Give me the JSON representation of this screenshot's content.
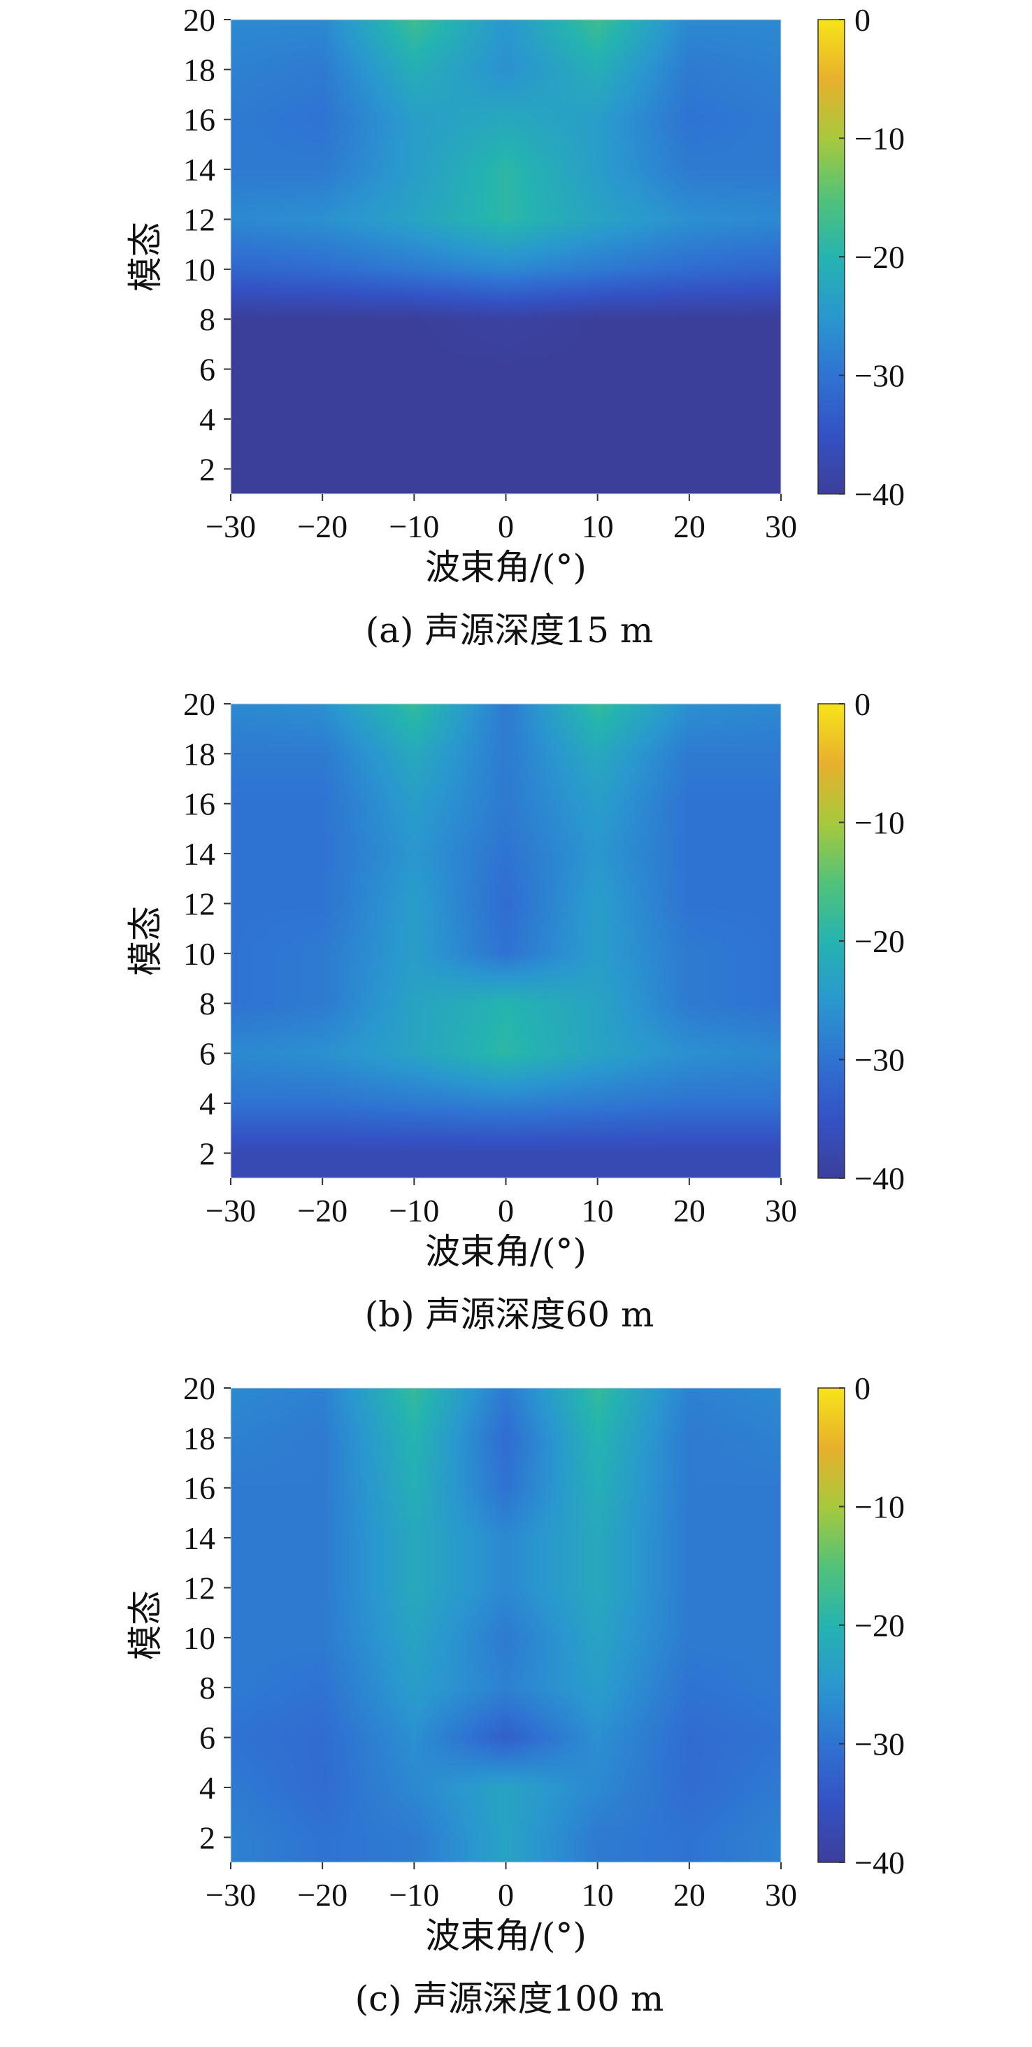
{
  "figure": {
    "colorscale": {
      "stops": [
        "#3b3f9a",
        "#3452c4",
        "#2f73d2",
        "#2a98cf",
        "#25b4b0",
        "#53c278",
        "#a8c93c",
        "#e8b02c",
        "#f7e41a"
      ],
      "min": -40,
      "max": 0,
      "ticks": [
        "0",
        "−10",
        "−20",
        "−30",
        "−40"
      ],
      "tick_values": [
        0,
        -10,
        -20,
        -30,
        -40
      ]
    },
    "xlabel": "波束角/(°)",
    "ylabel": "模态",
    "xticks": [
      "−30",
      "−20",
      "−10",
      "0",
      "10",
      "20",
      "30"
    ],
    "xtick_values": [
      -30,
      -20,
      -10,
      0,
      10,
      20,
      30
    ],
    "yticks": [
      "20",
      "18",
      "16",
      "14",
      "12",
      "10",
      "8",
      "6",
      "4",
      "2"
    ],
    "ytick_values": [
      20,
      18,
      16,
      14,
      12,
      10,
      8,
      6,
      4,
      2
    ]
  },
  "chart_data": [
    {
      "type": "heatmap",
      "caption": "(a) 声源深度15 m",
      "xlabel": "波束角/(°)",
      "ylabel": "模态",
      "xlim": [
        -30,
        30
      ],
      "ylim": [
        1,
        20
      ],
      "clim": [
        -40,
        0
      ],
      "x": [
        -30,
        -20,
        -10,
        0,
        10,
        20,
        30
      ],
      "y": [
        2,
        4,
        6,
        8,
        10,
        12,
        14,
        16,
        18,
        20
      ],
      "z": [
        [
          -40,
          -40,
          -40,
          -40,
          -40,
          -40,
          -40
        ],
        [
          -40,
          -40,
          -40,
          -40,
          -40,
          -40,
          -40
        ],
        [
          -40,
          -40,
          -40,
          -40,
          -40,
          -40,
          -40
        ],
        [
          -40,
          -40,
          -40,
          -39,
          -40,
          -40,
          -40
        ],
        [
          -32,
          -31,
          -29,
          -27,
          -29,
          -31,
          -32
        ],
        [
          -27,
          -26,
          -23,
          -19,
          -23,
          -26,
          -27
        ],
        [
          -29,
          -29,
          -24,
          -19,
          -24,
          -29,
          -29
        ],
        [
          -29,
          -30,
          -24,
          -22,
          -24,
          -30,
          -29
        ],
        [
          -28,
          -29,
          -21,
          -26,
          -21,
          -29,
          -28
        ],
        [
          -27,
          -27,
          -17,
          -25,
          -17,
          -27,
          -27
        ]
      ]
    },
    {
      "type": "heatmap",
      "caption": "(b) 声源深度60 m",
      "xlabel": "波束角/(°)",
      "ylabel": "模态",
      "xlim": [
        -30,
        30
      ],
      "ylim": [
        1,
        20
      ],
      "clim": [
        -40,
        0
      ],
      "x": [
        -30,
        -20,
        -10,
        0,
        10,
        20,
        30
      ],
      "y": [
        2,
        4,
        6,
        8,
        10,
        12,
        14,
        16,
        18,
        20
      ],
      "z": [
        [
          -37,
          -37,
          -37,
          -37,
          -37,
          -37,
          -37
        ],
        [
          -30,
          -30,
          -29,
          -28,
          -29,
          -30,
          -30
        ],
        [
          -27,
          -26,
          -23,
          -19,
          -23,
          -26,
          -27
        ],
        [
          -30,
          -29,
          -23,
          -20,
          -23,
          -29,
          -30
        ],
        [
          -30,
          -29,
          -24,
          -30,
          -24,
          -29,
          -30
        ],
        [
          -30,
          -30,
          -24,
          -31,
          -24,
          -30,
          -30
        ],
        [
          -30,
          -30,
          -25,
          -30,
          -25,
          -30,
          -30
        ],
        [
          -30,
          -30,
          -24,
          -29,
          -24,
          -30,
          -30
        ],
        [
          -29,
          -29,
          -22,
          -29,
          -22,
          -29,
          -29
        ],
        [
          -27,
          -26,
          -18,
          -29,
          -18,
          -26,
          -27
        ]
      ]
    },
    {
      "type": "heatmap",
      "caption": "(c) 声源深度100 m",
      "xlabel": "波束角/(°)",
      "ylabel": "模态",
      "xlim": [
        -30,
        30
      ],
      "ylim": [
        1,
        20
      ],
      "clim": [
        -40,
        0
      ],
      "x": [
        -30,
        -20,
        -10,
        0,
        10,
        20,
        30
      ],
      "y": [
        2,
        4,
        6,
        8,
        10,
        12,
        14,
        16,
        18,
        20
      ],
      "z": [
        [
          -28,
          -30,
          -29,
          -23,
          -29,
          -30,
          -28
        ],
        [
          -29,
          -31,
          -27,
          -23,
          -27,
          -31,
          -29
        ],
        [
          -30,
          -31,
          -26,
          -33,
          -26,
          -31,
          -30
        ],
        [
          -29,
          -30,
          -24,
          -28,
          -24,
          -30,
          -29
        ],
        [
          -29,
          -29,
          -23,
          -29,
          -23,
          -29,
          -29
        ],
        [
          -29,
          -29,
          -22,
          -27,
          -22,
          -29,
          -29
        ],
        [
          -29,
          -29,
          -22,
          -27,
          -22,
          -29,
          -29
        ],
        [
          -29,
          -29,
          -21,
          -30,
          -21,
          -29,
          -29
        ],
        [
          -28,
          -29,
          -20,
          -31,
          -20,
          -29,
          -28
        ],
        [
          -27,
          -28,
          -18,
          -29,
          -18,
          -28,
          -27
        ]
      ]
    }
  ]
}
